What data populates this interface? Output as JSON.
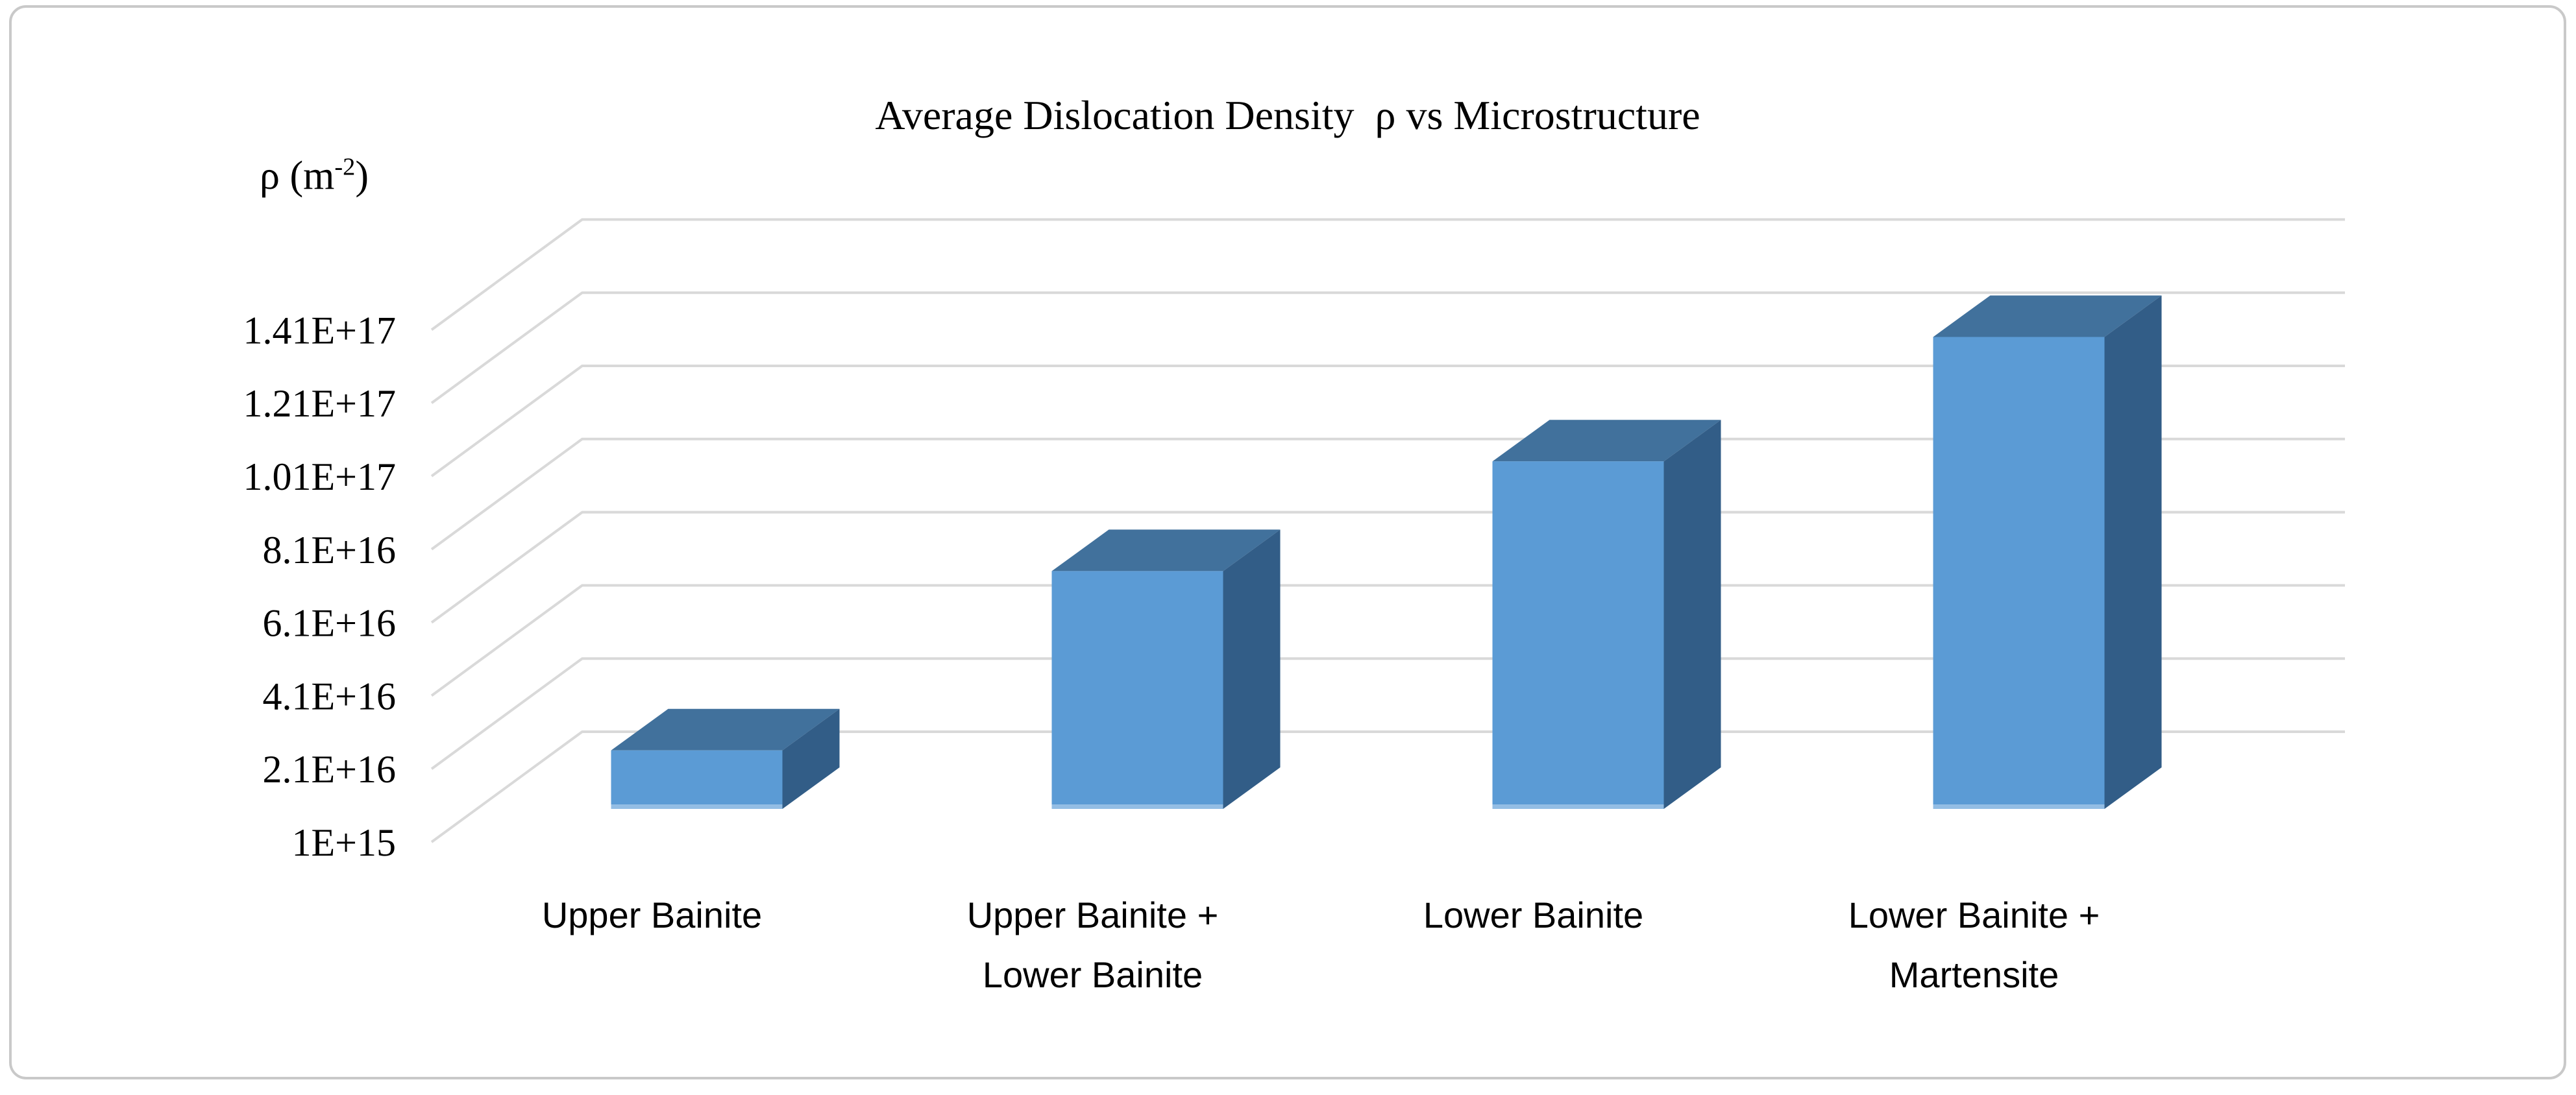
{
  "page": {
    "background": "#FFFFFF",
    "border_color": "#C9C9C9"
  },
  "chart_data": {
    "type": "bar",
    "variant": "3d-column",
    "title": "Average Dislocation Density  ρ vs Microstructure",
    "ylabel": {
      "prefix": "ρ (m",
      "superscript": "-2",
      "suffix": ")"
    },
    "xlabel": "",
    "categories": [
      "Upper Bainite",
      "Upper Bainite + Lower Bainite",
      "Lower Bainite",
      "Lower Bainite + Martensite"
    ],
    "category_lines": [
      [
        "Upper Bainite"
      ],
      [
        "Upper Bainite +",
        "Lower Bainite"
      ],
      [
        "Lower Bainite"
      ],
      [
        "Lower Bainite +",
        "Martensite"
      ]
    ],
    "values": [
      1.7e+16,
      6.6e+16,
      9.6e+16,
      1.3e+17
    ],
    "yticks": [
      {
        "label": "1E+15",
        "value": 1000000000000000.0
      },
      {
        "label": "2.1E+16",
        "value": 2.1e+16
      },
      {
        "label": "4.1E+16",
        "value": 4.1e+16
      },
      {
        "label": "6.1E+16",
        "value": 6.1e+16
      },
      {
        "label": "8.1E+16",
        "value": 8.1e+16
      },
      {
        "label": "1.01E+17",
        "value": 1.01e+17
      },
      {
        "label": "1.21E+17",
        "value": 1.21e+17
      },
      {
        "label": "1.41E+17",
        "value": 1.41e+17
      }
    ],
    "ylim": [
      1000000000000000.0,
      1.45e+17
    ],
    "grid": true,
    "legend": false,
    "colors": {
      "bar_front": "#5B9BD5",
      "bar_top": "#41719C",
      "bar_side": "#325D87",
      "bar_bottom_highlight": "#9DC3E6",
      "gridline": "#D9D9D9",
      "text": "#000000"
    }
  }
}
